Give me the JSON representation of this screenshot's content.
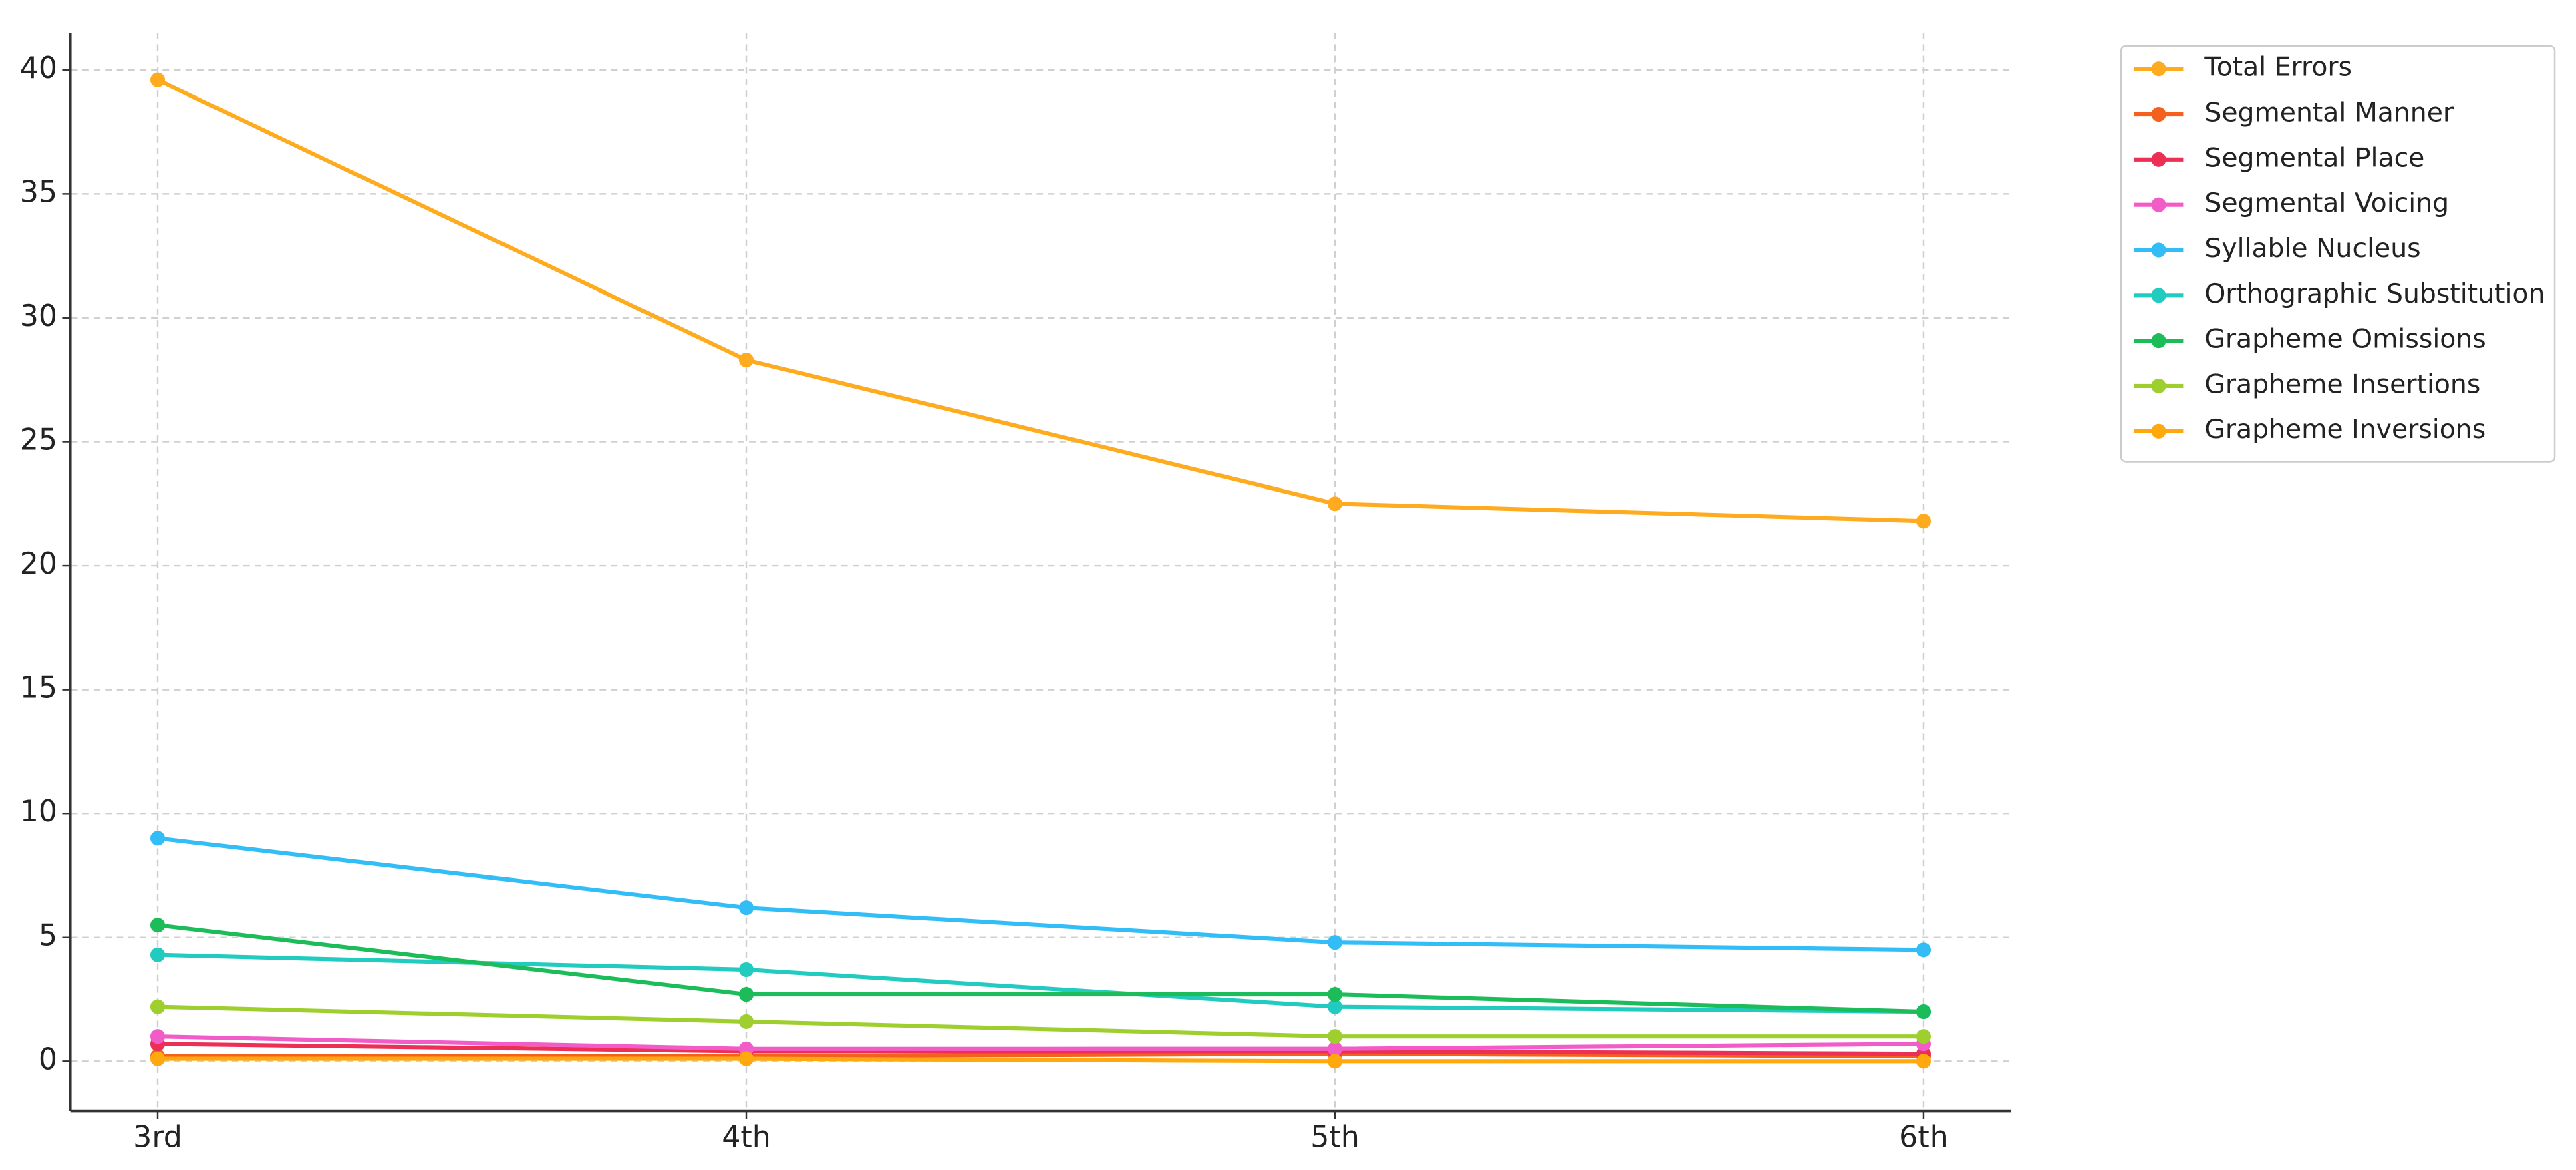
{
  "chart_data": {
    "type": "line",
    "categories": [
      "3rd",
      "4th",
      "5th",
      "6th"
    ],
    "series": [
      {
        "name": "Total Errors",
        "color": "#ffab1f",
        "values": [
          39.6,
          28.3,
          22.5,
          21.8
        ]
      },
      {
        "name": "Segmental Manner",
        "color": "#f4611e",
        "values": [
          0.2,
          0.2,
          0.3,
          0.2
        ]
      },
      {
        "name": "Segmental Place",
        "color": "#ec2f55",
        "values": [
          0.7,
          0.4,
          0.4,
          0.3
        ]
      },
      {
        "name": "Segmental Voicing",
        "color": "#f25cc8",
        "values": [
          1.0,
          0.5,
          0.5,
          0.7
        ]
      },
      {
        "name": "Syllable Nucleus",
        "color": "#33bdf7",
        "values": [
          9.0,
          6.2,
          4.8,
          4.5
        ]
      },
      {
        "name": "Orthographic Substitution",
        "color": "#22cbbf",
        "values": [
          4.3,
          3.7,
          2.2,
          2.0
        ]
      },
      {
        "name": "Grapheme Omissions",
        "color": "#1cbc5a",
        "values": [
          5.5,
          2.7,
          2.7,
          2.0
        ]
      },
      {
        "name": "Grapheme Insertions",
        "color": "#9fcf2f",
        "values": [
          2.2,
          1.6,
          1.0,
          1.0
        ]
      },
      {
        "name": "Grapheme Inversions",
        "color": "#ffa90e",
        "values": [
          0.1,
          0.1,
          0.0,
          0.0
        ]
      }
    ],
    "ylim": [
      -2,
      41.5
    ],
    "yticks": [
      0,
      5,
      10,
      15,
      20,
      25,
      30,
      35,
      40
    ],
    "grid": true,
    "legend": "outside-upper-right"
  }
}
